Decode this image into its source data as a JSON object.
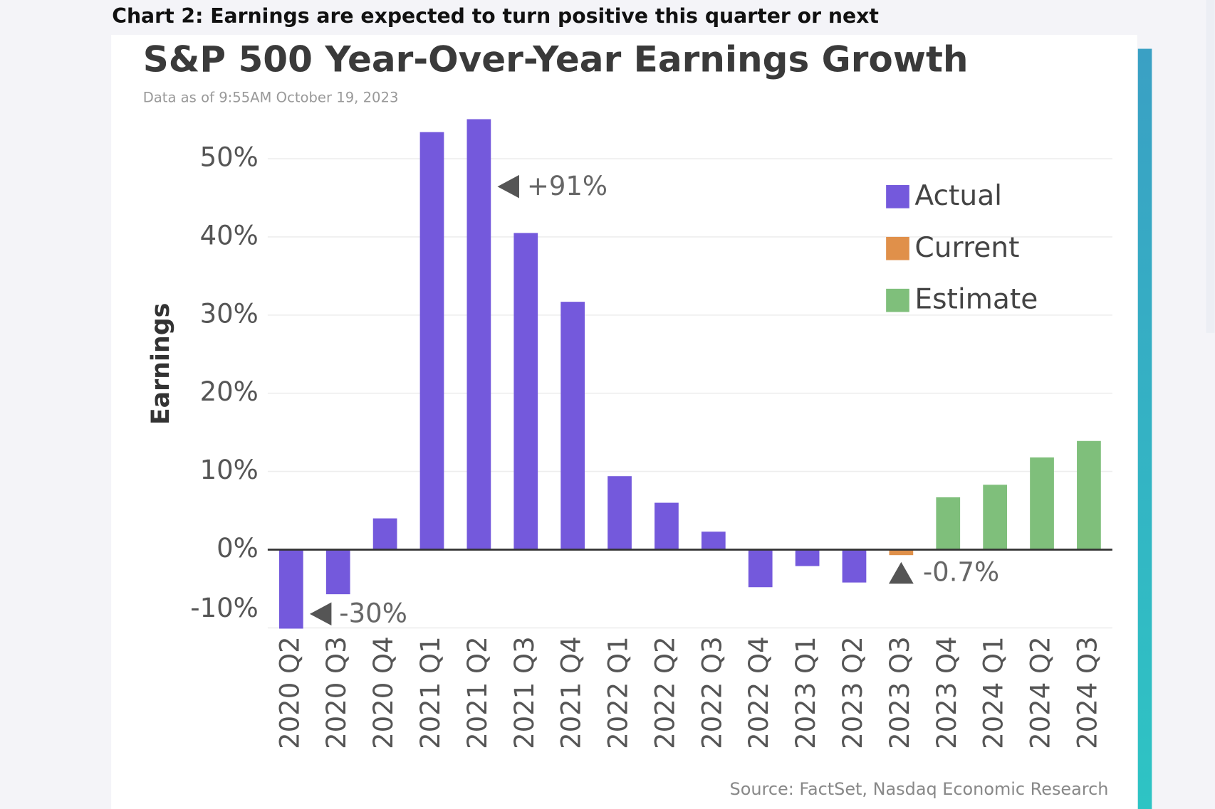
{
  "heading": "Chart 2: Earnings are expected to turn positive this quarter or next",
  "chart_data": {
    "type": "bar",
    "title": "S&P 500 Year-Over-Year Earnings Growth",
    "subtitle": "Data as of 9:55AM October 19, 2023",
    "y_label": "Earnings",
    "source": "Source: FactSet, Nasdaq Economic Research",
    "categories": [
      "2020 Q2",
      "2020 Q3",
      "2020 Q4",
      "2021 Q1",
      "2021 Q2",
      "2021 Q3",
      "2021 Q4",
      "2022 Q1",
      "2022 Q2",
      "2022 Q3",
      "2022 Q4",
      "2023 Q1",
      "2023 Q2",
      "2023 Q3",
      "2023 Q4",
      "2024 Q1",
      "2024 Q2",
      "2024 Q3"
    ],
    "series": [
      {
        "name": "Actual",
        "color": "#7459dc",
        "values": [
          -30,
          -5.7,
          4.0,
          53.4,
          91,
          40.5,
          31.7,
          9.4,
          6.0,
          2.3,
          -4.8,
          -2.1,
          -4.2,
          null,
          null,
          null,
          null,
          null
        ],
        "value_labels": [
          "-30%",
          null,
          null,
          null,
          "+91%",
          null,
          null,
          null,
          null,
          null,
          null,
          null,
          null,
          null,
          null,
          null,
          null,
          null
        ]
      },
      {
        "name": "Current",
        "color": "#e0904a",
        "values": [
          null,
          null,
          null,
          null,
          null,
          null,
          null,
          null,
          null,
          null,
          null,
          null,
          null,
          -0.7,
          null,
          null,
          null,
          null
        ],
        "value_labels": [
          null,
          null,
          null,
          null,
          null,
          null,
          null,
          null,
          null,
          null,
          null,
          null,
          null,
          "-0.7%",
          null,
          null,
          null,
          null
        ]
      },
      {
        "name": "Estimate",
        "color": "#7fbf7b",
        "values": [
          null,
          null,
          null,
          null,
          null,
          null,
          null,
          null,
          null,
          null,
          null,
          null,
          null,
          null,
          6.7,
          8.3,
          11.8,
          13.9
        ]
      }
    ],
    "ylim": [
      -10,
      55
    ],
    "yticks": [
      {
        "value": -10,
        "label": "-10%"
      },
      {
        "value": 0,
        "label": "0%"
      },
      {
        "value": 10,
        "label": "10%"
      },
      {
        "value": 20,
        "label": "20%"
      },
      {
        "value": 30,
        "label": "30%"
      },
      {
        "value": 40,
        "label": "40%"
      },
      {
        "value": 50,
        "label": "50%"
      }
    ],
    "grid": true,
    "legend": "upper right"
  }
}
